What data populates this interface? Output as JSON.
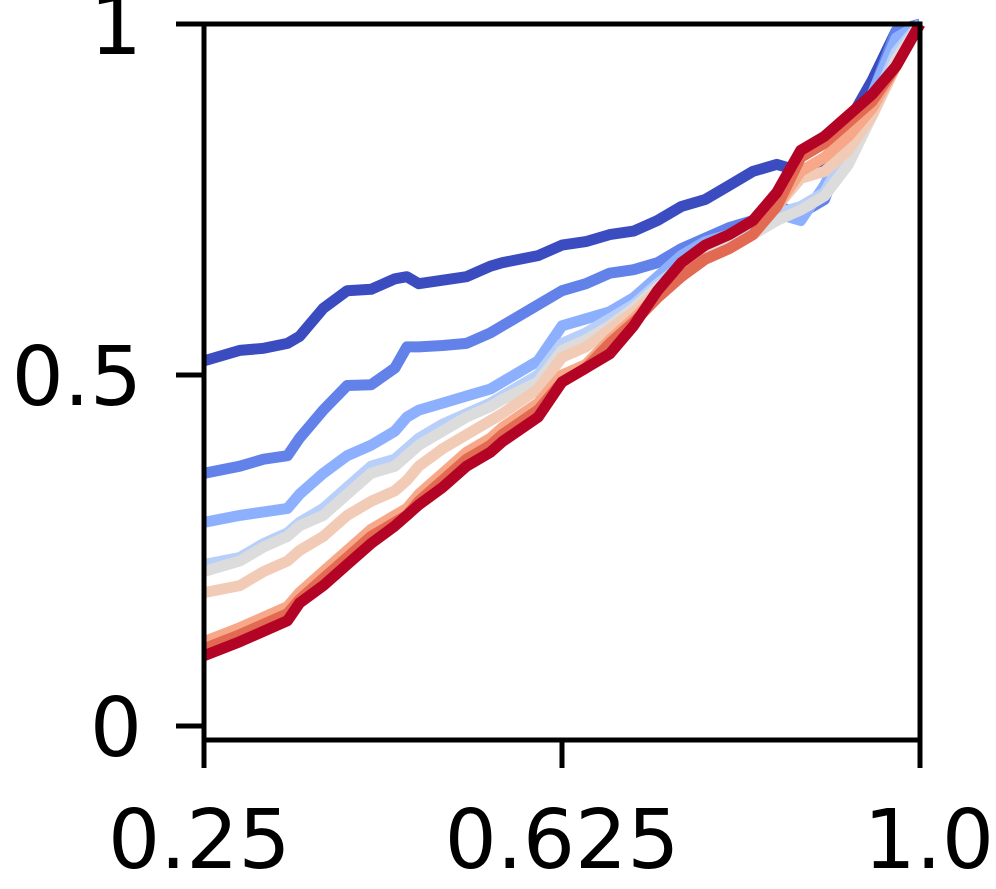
{
  "chart_data": {
    "type": "line",
    "title": "",
    "xlabel": "",
    "ylabel": "",
    "xlim": [
      0.25,
      1.0
    ],
    "ylim": [
      -0.02,
      1.0
    ],
    "grid": false,
    "legend": "none",
    "x_ticks": [
      {
        "value": 0.25,
        "label": "0.25"
      },
      {
        "value": 0.625,
        "label": "0.625"
      },
      {
        "value": 1.0,
        "label": "1.0"
      }
    ],
    "y_ticks": [
      {
        "value": 0,
        "label": "0"
      },
      {
        "value": 0.5,
        "label": "0.5"
      },
      {
        "value": 1,
        "label": "1"
      }
    ],
    "x": [
      0.25,
      0.2875,
      0.3125,
      0.3375,
      0.35,
      0.375,
      0.4,
      0.425,
      0.45,
      0.4625,
      0.475,
      0.5,
      0.525,
      0.55,
      0.5625,
      0.6,
      0.625,
      0.65,
      0.675,
      0.7,
      0.725,
      0.75,
      0.775,
      0.8,
      0.825,
      0.85,
      0.875,
      0.9,
      0.925,
      0.95,
      0.975,
      1.0
    ],
    "series": [
      {
        "color": "#3b4cc0",
        "values": [
          0.52,
          0.535,
          0.538,
          0.545,
          0.555,
          0.595,
          0.62,
          0.622,
          0.637,
          0.64,
          0.63,
          0.635,
          0.64,
          0.655,
          0.66,
          0.67,
          0.685,
          0.69,
          0.7,
          0.705,
          0.72,
          0.74,
          0.75,
          0.77,
          0.79,
          0.8,
          0.79,
          0.8,
          0.86,
          0.92,
          0.99,
          1.0
        ]
      },
      {
        "color": "#6282ea",
        "values": [
          0.36,
          0.37,
          0.38,
          0.385,
          0.41,
          0.45,
          0.485,
          0.486,
          0.51,
          0.54,
          0.54,
          0.542,
          0.545,
          0.56,
          0.57,
          0.6,
          0.62,
          0.63,
          0.645,
          0.65,
          0.66,
          0.68,
          0.695,
          0.71,
          0.72,
          0.74,
          0.73,
          0.75,
          0.84,
          0.9,
          0.99,
          1.0
        ]
      },
      {
        "color": "#8db0fe",
        "values": [
          0.29,
          0.3,
          0.305,
          0.31,
          0.33,
          0.36,
          0.385,
          0.4,
          0.42,
          0.44,
          0.45,
          0.46,
          0.47,
          0.48,
          0.49,
          0.52,
          0.57,
          0.58,
          0.59,
          0.61,
          0.64,
          0.67,
          0.69,
          0.7,
          0.71,
          0.73,
          0.72,
          0.77,
          0.84,
          0.9,
          0.98,
          1.0
        ]
      },
      {
        "color": "#b8d0f9",
        "values": [
          0.23,
          0.24,
          0.26,
          0.275,
          0.29,
          0.31,
          0.34,
          0.37,
          0.38,
          0.395,
          0.41,
          0.43,
          0.445,
          0.46,
          0.47,
          0.5,
          0.545,
          0.56,
          0.58,
          0.6,
          0.63,
          0.655,
          0.675,
          0.69,
          0.705,
          0.73,
          0.74,
          0.76,
          0.82,
          0.88,
          0.96,
          1.0
        ]
      },
      {
        "color": "#dddcdc",
        "values": [
          0.22,
          0.235,
          0.255,
          0.27,
          0.285,
          0.3,
          0.33,
          0.36,
          0.37,
          0.385,
          0.4,
          0.42,
          0.44,
          0.455,
          0.465,
          0.49,
          0.535,
          0.55,
          0.57,
          0.595,
          0.625,
          0.65,
          0.67,
          0.685,
          0.7,
          0.72,
          0.735,
          0.755,
          0.8,
          0.87,
          0.95,
          1.0
        ]
      },
      {
        "color": "#f2cbb7",
        "values": [
          0.19,
          0.2,
          0.22,
          0.235,
          0.25,
          0.27,
          0.3,
          0.32,
          0.335,
          0.35,
          0.37,
          0.395,
          0.415,
          0.435,
          0.445,
          0.48,
          0.525,
          0.54,
          0.565,
          0.59,
          0.62,
          0.645,
          0.665,
          0.68,
          0.7,
          0.74,
          0.78,
          0.79,
          0.82,
          0.87,
          0.94,
          1.0
        ]
      },
      {
        "color": "#f7a889",
        "values": [
          0.12,
          0.14,
          0.155,
          0.17,
          0.19,
          0.22,
          0.25,
          0.28,
          0.3,
          0.31,
          0.33,
          0.36,
          0.39,
          0.41,
          0.425,
          0.46,
          0.5,
          0.515,
          0.55,
          0.58,
          0.615,
          0.64,
          0.665,
          0.68,
          0.7,
          0.74,
          0.79,
          0.81,
          0.84,
          0.88,
          0.94,
          1.0
        ]
      },
      {
        "color": "#e26952",
        "values": [
          0.11,
          0.13,
          0.145,
          0.16,
          0.18,
          0.21,
          0.24,
          0.27,
          0.29,
          0.3,
          0.32,
          0.35,
          0.38,
          0.4,
          0.415,
          0.45,
          0.49,
          0.51,
          0.545,
          0.575,
          0.61,
          0.64,
          0.665,
          0.68,
          0.7,
          0.74,
          0.81,
          0.83,
          0.86,
          0.89,
          0.94,
          1.0
        ]
      },
      {
        "color": "#b40426",
        "values": [
          0.1,
          0.12,
          0.135,
          0.15,
          0.175,
          0.2,
          0.23,
          0.26,
          0.285,
          0.3,
          0.315,
          0.34,
          0.37,
          0.39,
          0.405,
          0.44,
          0.49,
          0.51,
          0.53,
          0.57,
          0.62,
          0.66,
          0.685,
          0.7,
          0.72,
          0.76,
          0.82,
          0.84,
          0.87,
          0.9,
          0.94,
          1.0
        ]
      }
    ]
  }
}
